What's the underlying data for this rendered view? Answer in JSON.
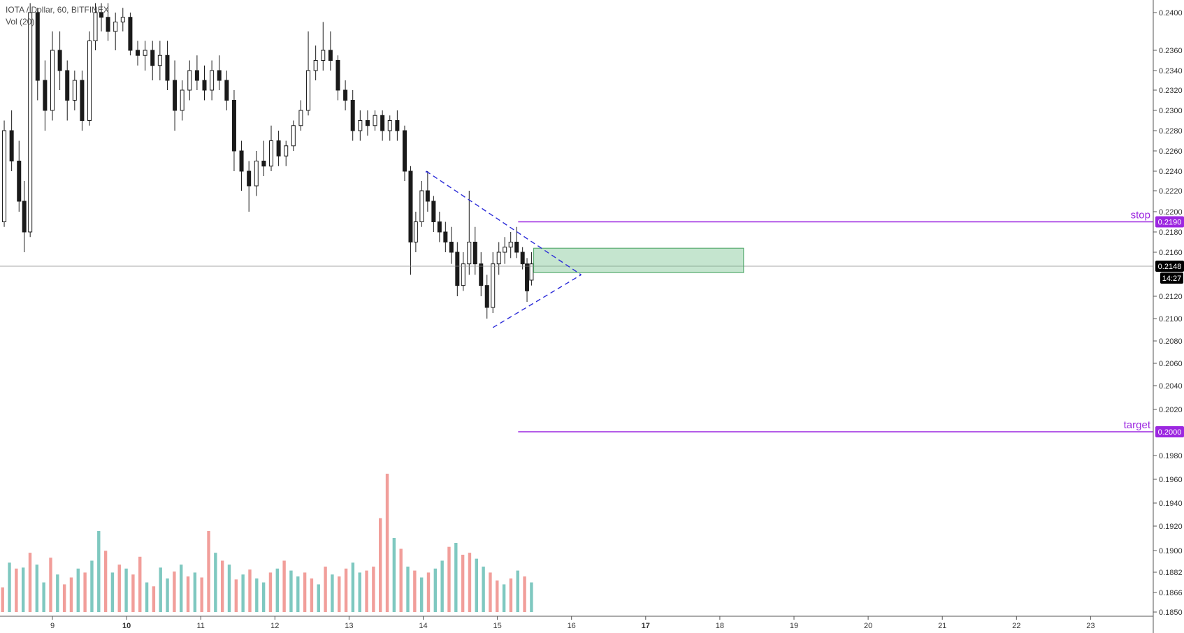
{
  "legend": {
    "symbol_line": "IOTA / Dollar, 60, BITFINEX",
    "volume_line": "Vol (20)"
  },
  "chart_data": {
    "type": "candlestick",
    "title": "IOTA / Dollar, 60, BITFINEX",
    "ylim": [
      0.1846,
      0.241
    ],
    "y_ticks": [
      "0.2400",
      "0.2360",
      "0.2340",
      "0.2320",
      "0.2300",
      "0.2280",
      "0.2260",
      "0.2240",
      "0.2220",
      "0.2200",
      "0.2180",
      "0.2160",
      "0.2120",
      "0.2100",
      "0.2080",
      "0.2060",
      "0.2040",
      "0.2020",
      "0.1980",
      "0.1960",
      "0.1940",
      "0.1920",
      "0.1900",
      "0.1882",
      "0.1866",
      "0.1850"
    ],
    "y_tick_values": [
      0.24,
      0.236,
      0.234,
      0.232,
      0.23,
      0.228,
      0.226,
      0.224,
      0.222,
      0.22,
      0.218,
      0.216,
      0.212,
      0.21,
      0.208,
      0.206,
      0.204,
      0.202,
      0.198,
      0.196,
      0.194,
      0.192,
      0.19,
      0.1882,
      0.1866,
      0.185
    ],
    "x_ticks": [
      {
        "label": "9",
        "day": 9,
        "bold": false
      },
      {
        "label": "10",
        "day": 10,
        "bold": true
      },
      {
        "label": "11",
        "day": 11,
        "bold": false
      },
      {
        "label": "12",
        "day": 12,
        "bold": false
      },
      {
        "label": "13",
        "day": 13,
        "bold": false
      },
      {
        "label": "14",
        "day": 14,
        "bold": false
      },
      {
        "label": "15",
        "day": 15,
        "bold": false
      },
      {
        "label": "16",
        "day": 16,
        "bold": false
      },
      {
        "label": "17",
        "day": 17,
        "bold": true
      },
      {
        "label": "18",
        "day": 18,
        "bold": false
      },
      {
        "label": "19",
        "day": 19,
        "bold": false
      },
      {
        "label": "20",
        "day": 20,
        "bold": false
      },
      {
        "label": "21",
        "day": 21,
        "bold": false
      },
      {
        "label": "22",
        "day": 22,
        "bold": false
      },
      {
        "label": "23",
        "day": 23,
        "bold": false
      }
    ],
    "x_range_days": [
      8.02,
      23.6
    ],
    "candles_by_day": [
      [
        8.05,
        0.229,
        0.231,
        0.225,
        0.226
      ],
      [
        8.15,
        0.226,
        0.227,
        0.222,
        0.223
      ],
      [
        8.25,
        0.223,
        0.224,
        0.2185,
        0.219
      ],
      [
        8.35,
        0.219,
        0.229,
        0.2185,
        0.228
      ],
      [
        8.45,
        0.228,
        0.23,
        0.224,
        0.225
      ],
      [
        8.55,
        0.225,
        0.227,
        0.22,
        0.221
      ],
      [
        8.62,
        0.221,
        0.223,
        0.216,
        0.218
      ],
      [
        8.7,
        0.218,
        0.241,
        0.2175,
        0.24
      ],
      [
        8.8,
        0.24,
        0.2405,
        0.231,
        0.233
      ],
      [
        8.9,
        0.233,
        0.235,
        0.228,
        0.23
      ],
      [
        9.0,
        0.23,
        0.238,
        0.229,
        0.236
      ],
      [
        9.1,
        0.236,
        0.238,
        0.232,
        0.234
      ],
      [
        9.2,
        0.234,
        0.235,
        0.229,
        0.231
      ],
      [
        9.3,
        0.231,
        0.234,
        0.23,
        0.233
      ],
      [
        9.4,
        0.233,
        0.234,
        0.228,
        0.229
      ],
      [
        9.5,
        0.229,
        0.238,
        0.2285,
        0.237
      ],
      [
        9.58,
        0.237,
        0.241,
        0.236,
        0.24
      ],
      [
        9.66,
        0.24,
        0.241,
        0.238,
        0.2395
      ],
      [
        9.75,
        0.2395,
        0.241,
        0.237,
        0.238
      ],
      [
        9.85,
        0.238,
        0.24,
        0.236,
        0.239
      ],
      [
        9.95,
        0.239,
        0.2405,
        0.238,
        0.2395
      ],
      [
        10.05,
        0.2395,
        0.24,
        0.2355,
        0.236
      ],
      [
        10.15,
        0.236,
        0.237,
        0.2345,
        0.2355
      ],
      [
        10.25,
        0.2355,
        0.237,
        0.234,
        0.236
      ],
      [
        10.35,
        0.236,
        0.237,
        0.233,
        0.2345
      ],
      [
        10.45,
        0.2345,
        0.237,
        0.233,
        0.2355
      ],
      [
        10.55,
        0.2355,
        0.237,
        0.232,
        0.233
      ],
      [
        10.65,
        0.233,
        0.235,
        0.228,
        0.23
      ],
      [
        10.75,
        0.23,
        0.233,
        0.229,
        0.232
      ],
      [
        10.85,
        0.232,
        0.235,
        0.231,
        0.234
      ],
      [
        10.95,
        0.234,
        0.2355,
        0.232,
        0.233
      ],
      [
        11.05,
        0.233,
        0.2345,
        0.231,
        0.232
      ],
      [
        11.15,
        0.232,
        0.235,
        0.231,
        0.234
      ],
      [
        11.25,
        0.234,
        0.2355,
        0.232,
        0.233
      ],
      [
        11.35,
        0.233,
        0.234,
        0.23,
        0.231
      ],
      [
        11.45,
        0.231,
        0.232,
        0.224,
        0.226
      ],
      [
        11.55,
        0.226,
        0.227,
        0.222,
        0.224
      ],
      [
        11.65,
        0.224,
        0.225,
        0.22,
        0.2225
      ],
      [
        11.75,
        0.2225,
        0.226,
        0.2215,
        0.225
      ],
      [
        11.85,
        0.225,
        0.227,
        0.2235,
        0.2245
      ],
      [
        11.95,
        0.2245,
        0.2285,
        0.224,
        0.227
      ],
      [
        12.05,
        0.227,
        0.228,
        0.2245,
        0.2255
      ],
      [
        12.15,
        0.2255,
        0.227,
        0.2245,
        0.2265
      ],
      [
        12.25,
        0.2265,
        0.229,
        0.226,
        0.2285
      ],
      [
        12.35,
        0.2285,
        0.231,
        0.228,
        0.23
      ],
      [
        12.45,
        0.23,
        0.238,
        0.2295,
        0.234
      ],
      [
        12.55,
        0.234,
        0.2365,
        0.233,
        0.235
      ],
      [
        12.65,
        0.235,
        0.239,
        0.234,
        0.236
      ],
      [
        12.75,
        0.236,
        0.238,
        0.234,
        0.235
      ],
      [
        12.85,
        0.235,
        0.2355,
        0.231,
        0.232
      ],
      [
        12.95,
        0.232,
        0.233,
        0.23,
        0.231
      ],
      [
        13.05,
        0.231,
        0.232,
        0.227,
        0.228
      ],
      [
        13.15,
        0.228,
        0.23,
        0.227,
        0.229
      ],
      [
        13.25,
        0.229,
        0.23,
        0.2275,
        0.2285
      ],
      [
        13.35,
        0.2285,
        0.23,
        0.228,
        0.2295
      ],
      [
        13.45,
        0.2295,
        0.23,
        0.227,
        0.228
      ],
      [
        13.55,
        0.228,
        0.2295,
        0.227,
        0.229
      ],
      [
        13.65,
        0.229,
        0.23,
        0.227,
        0.228
      ],
      [
        13.75,
        0.228,
        0.2285,
        0.223,
        0.224
      ],
      [
        13.83,
        0.224,
        0.2245,
        0.214,
        0.217
      ],
      [
        13.9,
        0.217,
        0.22,
        0.216,
        0.219
      ],
      [
        13.98,
        0.219,
        0.223,
        0.2185,
        0.222
      ],
      [
        14.06,
        0.222,
        0.224,
        0.22,
        0.221
      ],
      [
        14.14,
        0.221,
        0.2215,
        0.218,
        0.219
      ],
      [
        14.22,
        0.219,
        0.22,
        0.217,
        0.218
      ],
      [
        14.3,
        0.218,
        0.219,
        0.216,
        0.217
      ],
      [
        14.38,
        0.217,
        0.2185,
        0.215,
        0.216
      ],
      [
        14.46,
        0.216,
        0.217,
        0.212,
        0.213
      ],
      [
        14.54,
        0.213,
        0.216,
        0.2125,
        0.215
      ],
      [
        14.62,
        0.215,
        0.222,
        0.214,
        0.217
      ],
      [
        14.7,
        0.217,
        0.2185,
        0.214,
        0.215
      ],
      [
        14.78,
        0.215,
        0.216,
        0.212,
        0.213
      ],
      [
        14.86,
        0.213,
        0.214,
        0.21,
        0.211
      ],
      [
        14.94,
        0.211,
        0.216,
        0.2105,
        0.215
      ],
      [
        15.02,
        0.215,
        0.217,
        0.214,
        0.216
      ],
      [
        15.1,
        0.216,
        0.2175,
        0.215,
        0.2165
      ],
      [
        15.18,
        0.2165,
        0.218,
        0.2155,
        0.217
      ],
      [
        15.26,
        0.217,
        0.2185,
        0.2155,
        0.216
      ],
      [
        15.34,
        0.216,
        0.2165,
        0.2145,
        0.215
      ],
      [
        15.4,
        0.215,
        0.2155,
        0.2115,
        0.2125
      ],
      [
        15.46,
        0.2135,
        0.216,
        0.213,
        0.215
      ]
    ],
    "volume_heights": [
      38,
      42,
      30,
      25,
      50,
      44,
      45,
      60,
      48,
      30,
      55,
      38,
      28,
      35,
      44,
      40,
      52,
      82,
      62,
      40,
      48,
      44,
      38,
      56,
      30,
      26,
      45,
      34,
      41,
      48,
      36,
      40,
      35,
      82,
      60,
      52,
      48,
      33,
      38,
      43,
      34,
      30,
      40,
      44,
      52,
      42,
      36,
      40,
      34,
      28,
      46,
      38,
      36,
      44,
      50,
      40,
      42,
      46,
      95,
      140,
      75,
      64,
      46,
      42,
      35,
      40,
      44,
      52,
      66,
      70,
      58,
      60,
      54,
      46,
      40,
      32,
      28,
      34,
      42,
      36,
      30
    ],
    "volume_up": [
      false,
      true,
      false,
      false,
      true,
      false,
      true,
      false,
      true,
      true,
      false,
      true,
      false,
      false,
      true,
      false,
      true,
      true,
      false,
      true,
      false,
      true,
      false,
      false,
      true,
      false,
      true,
      true,
      false,
      true,
      false,
      true,
      false,
      false,
      true,
      false,
      true,
      false,
      true,
      false,
      true,
      true,
      false,
      true,
      false,
      true,
      true,
      false,
      false,
      true,
      false,
      true,
      false,
      false,
      true,
      true,
      false,
      false,
      false,
      false,
      true,
      false,
      true,
      false,
      true,
      false,
      true,
      true,
      false,
      true,
      false,
      false,
      true,
      true,
      false,
      false,
      true,
      false,
      true,
      false,
      true
    ],
    "levels": {
      "stop": {
        "label": "stop",
        "value": 0.219,
        "price_text": "0.2190",
        "from_day": 15.28
      },
      "target": {
        "label": "target",
        "value": 0.2,
        "price_text": "0.2000",
        "from_day": 15.28
      }
    },
    "last_price": {
      "value": 0.2148,
      "text": "0.2148",
      "timer": "14:27"
    },
    "entry_zone": {
      "from_day": 15.49,
      "to_day": 18.32,
      "top": 0.2164,
      "bottom": 0.2142
    },
    "triangle": {
      "apex": [
        16.13,
        0.214
      ],
      "upper_start": [
        14.04,
        0.224
      ],
      "lower_start": [
        14.94,
        0.2092
      ]
    },
    "colors": {
      "up": "#7fc8c0",
      "down": "#f19e9a",
      "candle": "#1a1a1a",
      "level": "#9c27e0",
      "triangle": "#2b2bd8",
      "zone_fill": "rgba(102, 187, 128, 0.38)",
      "zone_stroke": "#43a15e",
      "last_price": "#000000",
      "axis": "#555555"
    }
  }
}
